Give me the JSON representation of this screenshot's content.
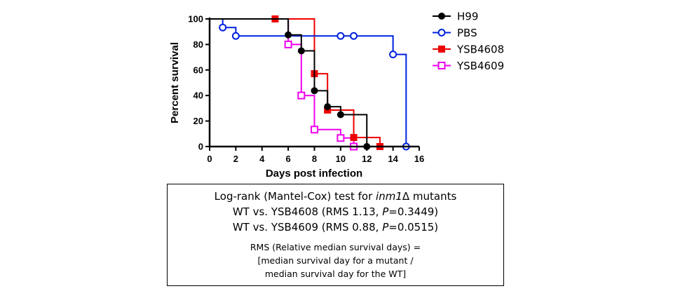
{
  "chart_data": {
    "type": "line",
    "subtype": "kaplan-meier",
    "title": "",
    "xlabel": "Days post infection",
    "ylabel": "Percent survival",
    "xlim": [
      0,
      16
    ],
    "ylim": [
      0,
      100
    ],
    "xticks": [
      0,
      2,
      4,
      6,
      8,
      10,
      12,
      14,
      16
    ],
    "yticks": [
      0,
      20,
      40,
      60,
      80,
      100
    ],
    "grid": false,
    "legend_position": "top-right",
    "series": [
      {
        "name": "H99",
        "color": "#000000",
        "marker": "filled-circle",
        "steps": [
          [
            0,
            100
          ],
          [
            6,
            87.5
          ],
          [
            7,
            75
          ],
          [
            8,
            43.75
          ],
          [
            9,
            31.25
          ],
          [
            10,
            25
          ],
          [
            12,
            0
          ]
        ],
        "points": [
          [
            6,
            87.5
          ],
          [
            7,
            75
          ],
          [
            8,
            43.75
          ],
          [
            9,
            31.25
          ],
          [
            10,
            25
          ],
          [
            12,
            0
          ]
        ]
      },
      {
        "name": "PBS",
        "color": "#0022dd",
        "marker": "open-circle",
        "steps": [
          [
            0,
            100
          ],
          [
            1,
            93.3
          ],
          [
            2,
            86.7
          ],
          [
            14,
            72.2
          ],
          [
            15,
            0
          ]
        ],
        "points": [
          [
            1,
            93.3
          ],
          [
            2,
            86.7
          ],
          [
            10,
            86.7
          ],
          [
            11,
            86.7
          ],
          [
            14,
            72.2
          ],
          [
            15,
            0
          ]
        ]
      },
      {
        "name": "YSB4608",
        "color": "#ee0000",
        "marker": "filled-square",
        "steps": [
          [
            0,
            100
          ],
          [
            8,
            57.1
          ],
          [
            9,
            28.6
          ],
          [
            11,
            7.1
          ],
          [
            13,
            0
          ]
        ],
        "points": [
          [
            5,
            100
          ],
          [
            8,
            57.1
          ],
          [
            9,
            28.6
          ],
          [
            11,
            7.1
          ],
          [
            13,
            0
          ]
        ]
      },
      {
        "name": "YSB4609",
        "color": "#ee00ee",
        "marker": "open-square",
        "steps": [
          [
            0,
            100
          ],
          [
            6,
            80
          ],
          [
            7,
            40
          ],
          [
            8,
            13.3
          ],
          [
            10,
            6.7
          ],
          [
            11,
            0
          ]
        ],
        "points": [
          [
            6,
            80
          ],
          [
            7,
            40
          ],
          [
            8,
            13.3
          ],
          [
            10,
            6.7
          ],
          [
            11,
            0
          ]
        ]
      }
    ]
  },
  "stats": {
    "line1_pre": "Log-rank (Mantel-Cox) test for ",
    "line1_ital": "inm1",
    "line1_post": "Δ mutants",
    "line2_pre": "WT vs. YSB4608 (RMS 1.13, ",
    "line2_ital": "P",
    "line2_post": "=0.3449)",
    "line3_pre": "WT vs. YSB4609 (RMS 0.88, ",
    "line3_ital": "P",
    "line3_post": "=0.0515)",
    "rms_line1": "RMS (Relative median survival days) =",
    "rms_line2": "[median survival day for a mutant  /",
    "rms_line3": "median survival day for the WT]"
  }
}
